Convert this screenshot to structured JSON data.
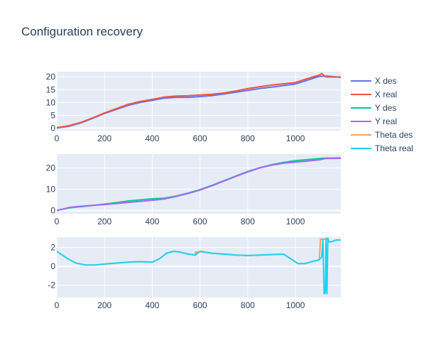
{
  "chart_data": {
    "type": "line",
    "title": "Configuration recovery",
    "legend_position": "right",
    "grid": true,
    "series_legend": [
      {
        "name": "X des",
        "color": "#636efa"
      },
      {
        "name": "X real",
        "color": "#ef553b"
      },
      {
        "name": "Y des",
        "color": "#00cc96"
      },
      {
        "name": "Y real",
        "color": "#ab63fa"
      },
      {
        "name": "Theta des",
        "color": "#ffa15a"
      },
      {
        "name": "Theta real",
        "color": "#19d3f3"
      }
    ],
    "subplots": [
      {
        "xlim": [
          0,
          1190
        ],
        "ylim": [
          -1,
          22
        ],
        "xticks": [
          0,
          200,
          400,
          600,
          800,
          1000
        ],
        "yticks": [
          0,
          5,
          10,
          15,
          20
        ],
        "series": [
          {
            "name": "X des",
            "color": "#636efa",
            "x": [
              0,
              50,
              100,
              150,
              200,
              250,
              300,
              350,
              400,
              450,
              500,
              550,
              600,
              650,
              700,
              750,
              800,
              850,
              900,
              950,
              1000,
              1050,
              1100,
              1130,
              1190
            ],
            "y": [
              0,
              0.7,
              2,
              3.8,
              5.7,
              7.3,
              8.9,
              10,
              10.8,
              11.7,
              12,
              12,
              12.3,
              12.7,
              13.3,
              14,
              14.7,
              15.4,
              16,
              16.6,
              17.2,
              18.7,
              20.2,
              20.3,
              19.8
            ]
          },
          {
            "name": "X real",
            "color": "#ef553b",
            "x": [
              0,
              50,
              100,
              150,
              200,
              250,
              300,
              350,
              400,
              450,
              500,
              550,
              600,
              650,
              700,
              750,
              800,
              850,
              900,
              950,
              1000,
              1050,
              1100,
              1110,
              1125,
              1190
            ],
            "y": [
              0.2,
              0.9,
              2.2,
              4,
              5.9,
              7.6,
              9.3,
              10.4,
              11.2,
              12.1,
              12.5,
              12.6,
              12.9,
              13.2,
              13.7,
              14.5,
              15.4,
              16.1,
              16.8,
              17.3,
              17.8,
              19.3,
              20.7,
              21.3,
              20,
              19.9
            ]
          }
        ]
      },
      {
        "xlim": [
          0,
          1190
        ],
        "ylim": [
          -1.5,
          26.5
        ],
        "xticks": [
          0,
          200,
          400,
          600,
          800,
          1000
        ],
        "yticks": [
          0,
          10,
          20
        ],
        "series": [
          {
            "name": "Y des",
            "color": "#00cc96",
            "x": [
              0,
              50,
              100,
              150,
              200,
              250,
              300,
              350,
              400,
              450,
              500,
              550,
              600,
              650,
              700,
              750,
              800,
              850,
              900,
              950,
              1000,
              1050,
              1100,
              1125,
              1190
            ],
            "y": [
              0,
              1.2,
              1.8,
              2.4,
              3,
              3.7,
              4.5,
              5,
              5.5,
              5.8,
              6.8,
              8.2,
              9.8,
              11.8,
              14,
              16.2,
              18.3,
              20.1,
              21.5,
              22.6,
              23.4,
              23.9,
              24.4,
              24.6,
              24.7
            ]
          },
          {
            "name": "Y real",
            "color": "#ab63fa",
            "x": [
              0,
              50,
              100,
              150,
              200,
              250,
              300,
              350,
              400,
              450,
              500,
              550,
              600,
              650,
              700,
              750,
              800,
              850,
              900,
              950,
              1000,
              1050,
              1100,
              1125,
              1190
            ],
            "y": [
              0,
              1.4,
              2,
              2.4,
              2.8,
              3.3,
              3.8,
              4.3,
              4.8,
              5.4,
              6.6,
              8,
              9.6,
              11.6,
              13.8,
              16,
              18.1,
              20,
              21.3,
              22.2,
              22.7,
              23.2,
              23.8,
              24.4,
              24.5
            ]
          }
        ]
      },
      {
        "xlim": [
          0,
          1190
        ],
        "ylim": [
          -3.3,
          3.1
        ],
        "xticks": [
          0,
          200,
          400,
          600,
          800,
          1000
        ],
        "yticks": [
          -2,
          0,
          2
        ],
        "series": [
          {
            "name": "Theta des",
            "color": "#ffa15a",
            "x": [
              0,
              40,
              80,
              120,
              160,
              200,
              250,
              300,
              350,
              400,
              430,
              460,
              490,
              520,
              550,
              580,
              580,
              600,
              650,
              700,
              750,
              800,
              850,
              900,
              950,
              980,
              1010,
              1040,
              1070,
              1100,
              1105,
              1110,
              1120,
              1125,
              1130,
              1135,
              1140,
              1150,
              1160,
              1170,
              1190
            ],
            "y": [
              1.6,
              0.9,
              0.35,
              0.15,
              0.15,
              0.25,
              0.35,
              0.45,
              0.5,
              0.45,
              0.8,
              1.4,
              1.6,
              1.5,
              1.3,
              1.2,
              1.5,
              1.55,
              1.4,
              1.3,
              1.2,
              1.15,
              1.2,
              1.25,
              1.3,
              0.8,
              0.3,
              0.3,
              0.5,
              0.7,
              2.9,
              2.9,
              2.9,
              2.9,
              2.9,
              2.9,
              2.6,
              2.6,
              2.7,
              2.8,
              2.8
            ]
          },
          {
            "name": "Theta real",
            "color": "#19d3f3",
            "x": [
              0,
              40,
              80,
              120,
              160,
              200,
              250,
              300,
              350,
              400,
              430,
              460,
              490,
              520,
              550,
              580,
              600,
              650,
              700,
              750,
              800,
              850,
              900,
              950,
              980,
              1010,
              1040,
              1070,
              1100,
              1110,
              1115,
              1120,
              1125,
              1128,
              1132,
              1136,
              1140,
              1150,
              1160,
              1170,
              1190
            ],
            "y": [
              1.6,
              0.9,
              0.35,
              0.15,
              0.15,
              0.25,
              0.35,
              0.45,
              0.5,
              0.45,
              0.8,
              1.4,
              1.6,
              1.5,
              1.3,
              1.2,
              1.6,
              1.4,
              1.3,
              1.2,
              1.15,
              1.2,
              1.25,
              1.3,
              0.8,
              0.3,
              0.3,
              0.5,
              0.7,
              1.0,
              2.9,
              -2.9,
              -2.8,
              3.0,
              -2.9,
              3.0,
              2.6,
              2.6,
              2.7,
              2.8,
              2.8
            ]
          }
        ]
      }
    ]
  }
}
